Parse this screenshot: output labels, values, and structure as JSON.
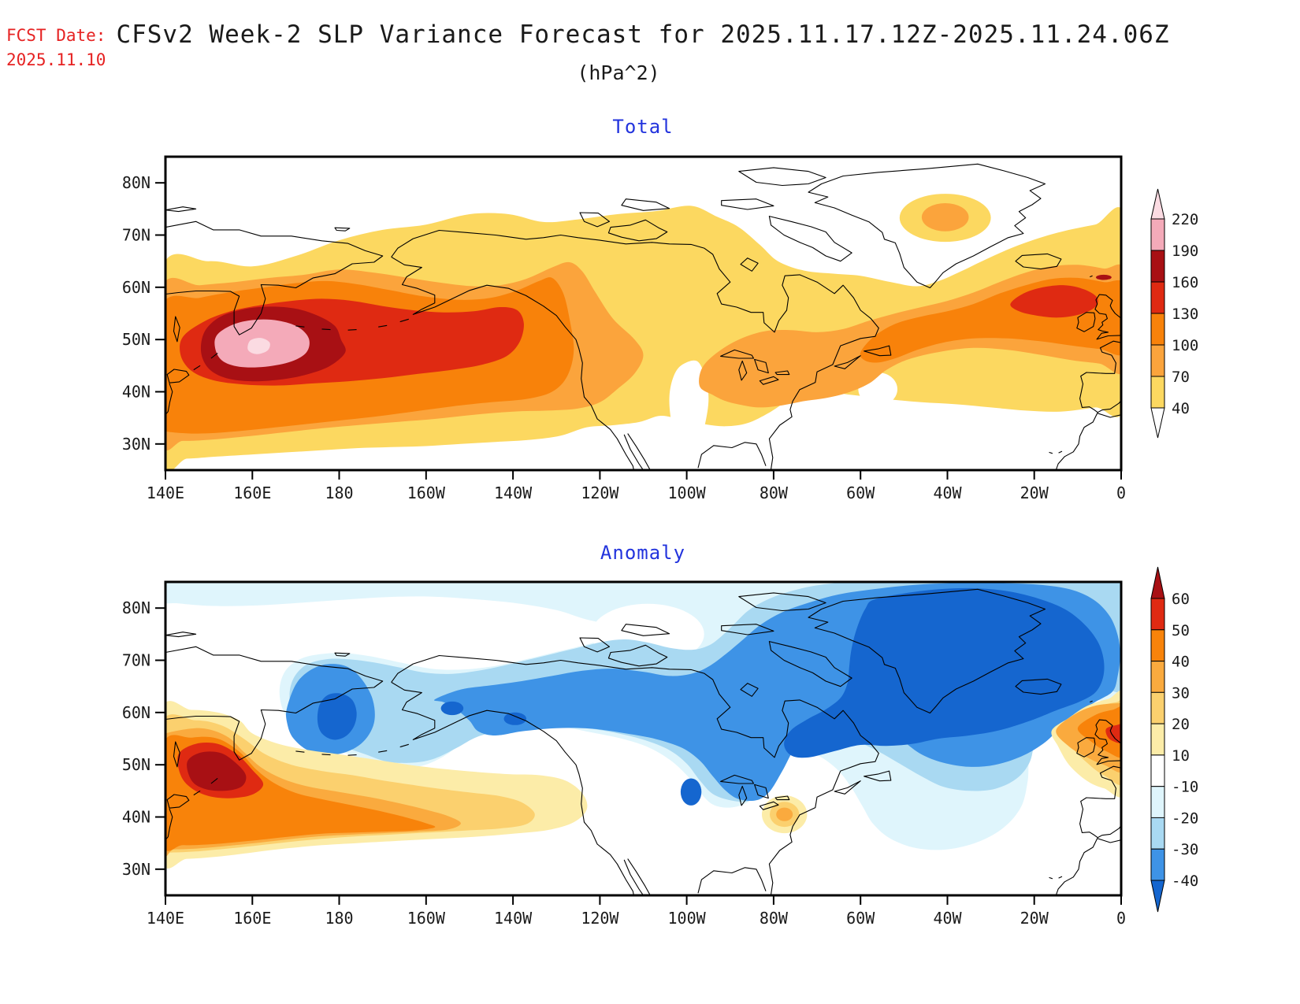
{
  "header": {
    "fcst_label": "FCST Date:",
    "fcst_date": "2025.11.10",
    "title": "CFSv2 Week-2 SLP Variance Forecast for 2025.11.17.12Z-2025.11.24.06Z",
    "subtitle": "(hPa^2)"
  },
  "panels": [
    {
      "id": "total",
      "title": "Total",
      "colorbar": {
        "labels": [
          "220",
          "190",
          "160",
          "130",
          "100",
          "70",
          "40"
        ],
        "segment_colors_top_to_bottom": [
          "#F4AAB9",
          "#A81014",
          "#DF2A12",
          "#F8820A",
          "#FBA43C",
          "#FCD860"
        ],
        "above_max_color": "#FBDBE2",
        "below_min_color": "#FFFFFF"
      }
    },
    {
      "id": "anomaly",
      "title": "Anomaly",
      "colorbar": {
        "labels": [
          "60",
          "50",
          "40",
          "30",
          "20",
          "10",
          "-10",
          "-20",
          "-30",
          "-40"
        ],
        "segment_colors_top_to_bottom": [
          "#DF2A12",
          "#F8830A",
          "#FAAA3E",
          "#FBD06E",
          "#FCECA8",
          "#FFFFFF",
          "#DFF5FC",
          "#A9D9F2",
          "#3E93E6"
        ],
        "above_max_color": "#A81014",
        "below_min_color": "#1566CF"
      }
    }
  ],
  "axes": {
    "lat_labels": [
      "80N",
      "70N",
      "60N",
      "50N",
      "40N",
      "30N"
    ],
    "lon_labels": [
      "140E",
      "160E",
      "180",
      "160W",
      "140W",
      "120W",
      "100W",
      "80W",
      "60W",
      "40W",
      "20W",
      "0"
    ]
  },
  "palette": {
    "total_levels": {
      "40": "#FCD860",
      "70": "#FBA43C",
      "100": "#F8820A",
      "130": "#DF2A12",
      "160": "#A81014",
      "190": "#F4AAB9",
      "220": "#FBDBE2"
    },
    "anomaly_positive": {
      "10": "#FCECA8",
      "20": "#FBD06E",
      "30": "#FAAA3E",
      "40": "#F8830A",
      "50": "#DF2A12",
      "60": "#A81014"
    },
    "anomaly_negative": {
      "-10": "#DFF5FC",
      "-20": "#A9D9F2",
      "-30": "#3E93E6",
      "-40": "#1566CF"
    },
    "coastline": "#000000",
    "frame": "#000000",
    "panel_title": "#2233DD",
    "red_label": "#E62222",
    "text": "#1A1A1A",
    "background": "#FFFFFF"
  },
  "chart_data": [
    {
      "type": "heatmap",
      "title": "Total",
      "units": "hPa^2",
      "contour_levels": [
        40,
        70,
        100,
        130,
        160,
        190,
        220
      ],
      "x_ticks": [
        "140E",
        "160E",
        "180",
        "160W",
        "140W",
        "120W",
        "100W",
        "80W",
        "60W",
        "40W",
        "20W",
        "0"
      ],
      "y_ticks": [
        "80N",
        "70N",
        "60N",
        "50N",
        "40N",
        "30N"
      ],
      "lon_range": [
        "140E",
        "0"
      ],
      "lat_range": [
        "25N",
        "85N"
      ],
      "legend_position": "right",
      "features": [
        {
          "label": "North Pacific maximum",
          "location": "160E 48N",
          "value": "> 220"
        },
        {
          "label": "Pacific storm-track band",
          "location": "140E-140W 40-58N",
          "value": "100-190"
        },
        {
          "label": "North Atlantic maximum",
          "location": "15W 58N",
          "value": "130-160"
        },
        {
          "label": "NE Greenland local maximum",
          "location": "40W 73N",
          "value": "70-100"
        },
        {
          "label": "Broad mid/high-latitude band",
          "location": "hemispheric 30-75N",
          "value": "40-70"
        },
        {
          "label": "Minimum regions",
          "location": "subtropics, Greenland, central plains",
          "value": "< 40"
        }
      ]
    },
    {
      "type": "heatmap",
      "title": "Anomaly",
      "units": "hPa^2",
      "contour_levels": [
        -40,
        -30,
        -20,
        -10,
        10,
        20,
        30,
        40,
        50,
        60
      ],
      "x_ticks": [
        "140E",
        "160E",
        "180",
        "160W",
        "140W",
        "120W",
        "100W",
        "80W",
        "60W",
        "40W",
        "20W",
        "0"
      ],
      "y_ticks": [
        "80N",
        "70N",
        "60N",
        "50N",
        "40N",
        "30N"
      ],
      "lon_range": [
        "140E",
        "0"
      ],
      "lat_range": [
        "25N",
        "85N"
      ],
      "legend_position": "right",
      "features": [
        {
          "label": "NW Pacific positive maximum",
          "location": "155E 49N",
          "value": "> 60"
        },
        {
          "label": "Positive anomaly near British Isles",
          "location": "5W 55N",
          "value": "40-60"
        },
        {
          "label": "Positive anomaly US east coast",
          "location": "78W 40N",
          "value": "20-40"
        },
        {
          "label": "Negative anomaly Bering Sea",
          "location": "178W 59N",
          "value": "< -40"
        },
        {
          "label": "Negative band Alaska-Canada",
          "location": "160W-100W 55-70N",
          "value": "-30 to -40"
        },
        {
          "label": "Large negative anomaly Greenland/N Atlantic",
          "location": "60W-5W 55-85N",
          "value": "< -40"
        },
        {
          "label": "Negative tongue central North America",
          "location": "100W 45N",
          "value": "-30 to -40"
        }
      ]
    }
  ]
}
